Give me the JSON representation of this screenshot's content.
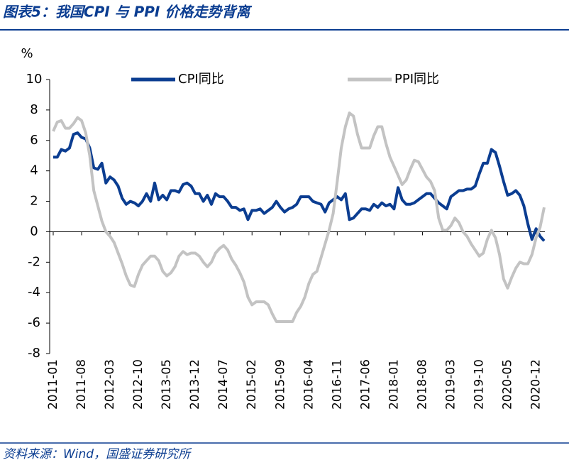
{
  "chart_data": {
    "type": "line",
    "title": "图表5：我国CPI 与 PPI 价格走势背离",
    "source": "资料来源：Wind，国盛证券研究所",
    "y_label": "%",
    "categories": [
      "2011-01",
      null,
      null,
      null,
      null,
      null,
      null,
      "2011-08",
      null,
      null,
      null,
      null,
      null,
      null,
      "2012-03",
      null,
      null,
      null,
      null,
      null,
      null,
      "2012-10",
      null,
      null,
      null,
      null,
      null,
      null,
      "2013-05",
      null,
      null,
      null,
      null,
      null,
      null,
      "2013-12",
      null,
      null,
      null,
      null,
      null,
      null,
      "2014-07",
      null,
      null,
      null,
      null,
      null,
      null,
      "2015-02",
      null,
      null,
      null,
      null,
      null,
      null,
      "2015-09",
      null,
      null,
      null,
      null,
      null,
      null,
      "2016-04",
      null,
      null,
      null,
      null,
      null,
      null,
      "2016-11",
      null,
      null,
      null,
      null,
      null,
      null,
      "2017-06",
      null,
      null,
      null,
      null,
      null,
      null,
      "2018-01",
      null,
      null,
      null,
      null,
      null,
      null,
      "2018-08",
      null,
      null,
      null,
      null,
      null,
      null,
      "2019-03",
      null,
      null,
      null,
      null,
      null,
      null,
      "2019-10",
      null,
      null,
      null,
      null,
      null,
      null,
      "2020-05",
      null,
      null,
      null,
      null,
      null,
      null,
      "2020-12",
      null,
      null
    ],
    "series": [
      {
        "name": "CPI同比",
        "color": "#0b3d91",
        "values": [
          4.9,
          4.9,
          5.4,
          5.3,
          5.5,
          6.4,
          6.5,
          6.2,
          6.1,
          5.5,
          4.2,
          4.1,
          4.5,
          3.2,
          3.6,
          3.4,
          3.0,
          2.2,
          1.8,
          2.0,
          1.9,
          1.7,
          2.0,
          2.5,
          2.0,
          3.2,
          2.1,
          2.4,
          2.1,
          2.7,
          2.7,
          2.6,
          3.1,
          3.2,
          3.0,
          2.5,
          2.5,
          2.0,
          2.4,
          1.8,
          2.5,
          2.3,
          2.3,
          2.0,
          1.6,
          1.6,
          1.4,
          1.5,
          0.8,
          1.4,
          1.4,
          1.5,
          1.2,
          1.4,
          1.6,
          2.0,
          1.6,
          1.3,
          1.5,
          1.6,
          1.8,
          2.3,
          2.3,
          2.3,
          2.0,
          1.9,
          1.8,
          1.3,
          1.9,
          2.1,
          2.3,
          2.1,
          2.5,
          0.8,
          0.9,
          1.2,
          1.5,
          1.5,
          1.4,
          1.8,
          1.6,
          1.9,
          1.7,
          1.8,
          1.5,
          2.9,
          2.1,
          1.8,
          1.8,
          1.9,
          2.1,
          2.3,
          2.5,
          2.5,
          2.2,
          1.9,
          1.7,
          1.5,
          2.3,
          2.5,
          2.7,
          2.7,
          2.8,
          2.8,
          3.0,
          3.8,
          4.5,
          4.5,
          5.4,
          5.2,
          4.3,
          3.3,
          2.4,
          2.5,
          2.7,
          2.4,
          1.7,
          0.5,
          -0.5,
          0.2,
          -0.3,
          -0.6
        ]
      },
      {
        "name": "PPI同比",
        "color": "#c3c3c3",
        "values": [
          6.6,
          7.2,
          7.3,
          6.8,
          6.8,
          7.1,
          7.5,
          7.3,
          6.5,
          5.0,
          2.7,
          1.7,
          0.7,
          0.0,
          -0.3,
          -0.7,
          -1.4,
          -2.1,
          -2.9,
          -3.5,
          -3.6,
          -2.8,
          -2.2,
          -1.9,
          -1.6,
          -1.6,
          -1.9,
          -2.6,
          -2.9,
          -2.7,
          -2.3,
          -1.6,
          -1.3,
          -1.5,
          -1.4,
          -1.4,
          -1.6,
          -2.0,
          -2.3,
          -2.0,
          -1.4,
          -1.1,
          -0.9,
          -1.2,
          -1.8,
          -2.2,
          -2.7,
          -3.3,
          -4.3,
          -4.8,
          -4.6,
          -4.6,
          -4.6,
          -4.8,
          -5.4,
          -5.9,
          -5.9,
          -5.9,
          -5.9,
          -5.9,
          -5.3,
          -4.9,
          -4.3,
          -3.4,
          -2.8,
          -2.6,
          -1.7,
          -0.8,
          0.1,
          1.2,
          3.3,
          5.5,
          6.9,
          7.8,
          7.6,
          6.4,
          5.5,
          5.5,
          5.5,
          6.3,
          6.9,
          6.9,
          5.8,
          4.9,
          4.3,
          3.7,
          3.1,
          3.4,
          4.1,
          4.7,
          4.6,
          4.1,
          3.6,
          3.3,
          2.7,
          0.9,
          0.1,
          0.1,
          0.4,
          0.9,
          0.6,
          0.0,
          -0.3,
          -0.8,
          -1.2,
          -1.6,
          -1.4,
          -0.5,
          0.1,
          -0.4,
          -1.5,
          -3.1,
          -3.7,
          -3.0,
          -2.4,
          -2.0,
          -2.1,
          -2.1,
          -1.5,
          -0.4,
          0.3,
          1.6
        ]
      }
    ],
    "ylim": [
      -8,
      10
    ],
    "yticks": [
      -8,
      -6,
      -4,
      -2,
      0,
      2,
      4,
      6,
      8,
      10
    ],
    "legend": "top",
    "grid": false
  }
}
